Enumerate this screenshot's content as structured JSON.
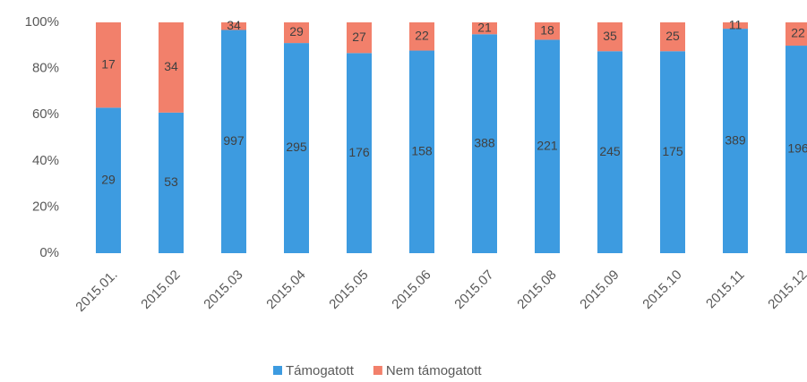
{
  "chart_data": {
    "type": "stacked_bar_percent",
    "categories": [
      "2015.01.",
      "2015.02",
      "2015.03",
      "2015.04",
      "2015.05",
      "2015.06",
      "2015.07",
      "2015.08",
      "2015.09",
      "2015.10",
      "2015.11",
      "2015.12"
    ],
    "series": [
      {
        "name": "Támogatott",
        "color": "#3d9be0",
        "values": [
          29,
          53,
          997,
          295,
          176,
          158,
          388,
          221,
          245,
          175,
          389,
          196
        ]
      },
      {
        "name": "Nem támogatott",
        "color": "#f2806b",
        "values": [
          17,
          34,
          34,
          29,
          27,
          22,
          21,
          18,
          35,
          25,
          11,
          22
        ]
      }
    ],
    "ylim": [
      0,
      100
    ],
    "yticks": [
      {
        "value": 0,
        "label": "0%"
      },
      {
        "value": 20,
        "label": "20%"
      },
      {
        "value": 40,
        "label": "40%"
      },
      {
        "value": 60,
        "label": "60%"
      },
      {
        "value": 80,
        "label": "80%"
      },
      {
        "value": 100,
        "label": "100%"
      }
    ],
    "legend": "bottom"
  }
}
